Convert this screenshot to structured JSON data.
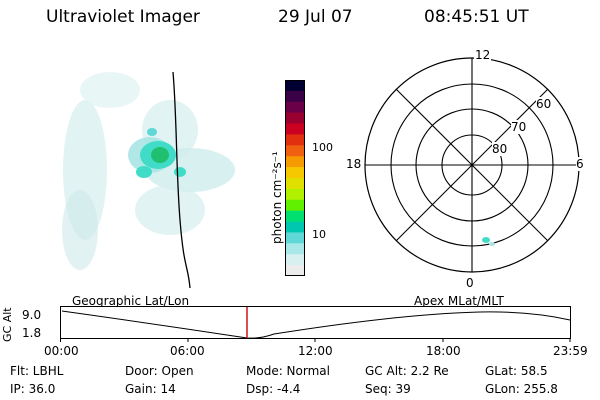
{
  "header": {
    "title": "Ultraviolet Imager",
    "date": "29 Jul 07",
    "time": "08:45:51 UT"
  },
  "colorbar": {
    "unit_label": "photon cm⁻²s⁻¹",
    "ticks": [
      "100",
      "10"
    ],
    "colors": [
      "#000033",
      "#3a0048",
      "#6a0048",
      "#990030",
      "#cc0020",
      "#e03010",
      "#f06010",
      "#f59a00",
      "#f5c800",
      "#e0e000",
      "#b0f000",
      "#60f000",
      "#00e070",
      "#00c8b0",
      "#60d8d8",
      "#a8e8e8",
      "#d8f0f0",
      "#ececec"
    ]
  },
  "polar": {
    "labels": {
      "top": "12",
      "bottom": "0",
      "left": "18",
      "right": "6"
    },
    "lat_labels": [
      "60",
      "70",
      "80"
    ]
  },
  "timeline": {
    "left_caption": "Geographic Lat/Lon",
    "right_caption": "Apex MLat/MLT",
    "y_label": "GC Alt",
    "y_max": "9.0",
    "y_min": "1.8",
    "ticks": [
      "00:00",
      "06:00",
      "12:00",
      "18:00",
      "23:59"
    ],
    "marker_color": "#cc0000"
  },
  "info": {
    "row1": {
      "flt": "Flt: LBHL",
      "door": "Door: Open",
      "mode": "Mode: Normal",
      "gcalt": "GC Alt: 2.2 Re",
      "glat": "GLat:  58.5"
    },
    "row2": {
      "ip": "IP: 36.0",
      "gain": "Gain: 14",
      "dsp": "Dsp:   -4.4",
      "seq": "Seq: 39",
      "glon": "GLon: 255.8"
    }
  }
}
